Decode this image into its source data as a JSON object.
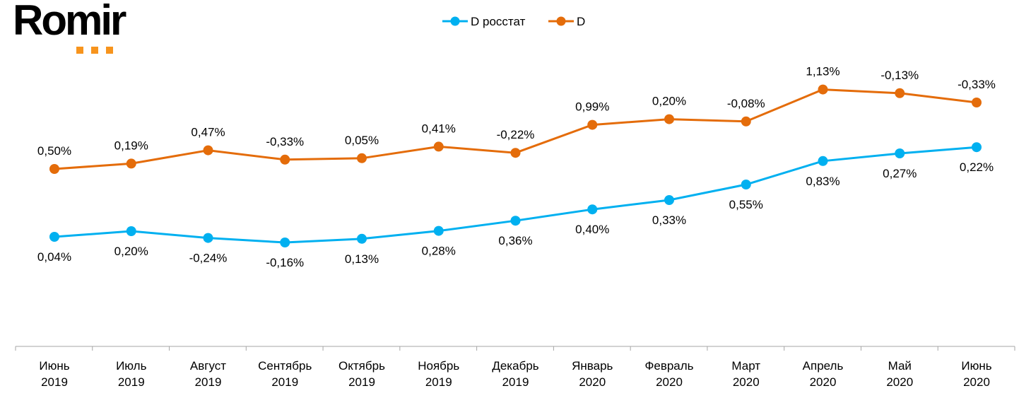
{
  "logo": {
    "text": "Romir",
    "accent": "#f7941d"
  },
  "chart_data": {
    "type": "line",
    "title": "",
    "xlabel": "",
    "ylabel": "",
    "grid": false,
    "legend_placement": "top-center",
    "categories": [
      [
        "Июнь",
        "2019"
      ],
      [
        "Июль",
        "2019"
      ],
      [
        "Август",
        "2019"
      ],
      [
        "Сентябрь",
        "2019"
      ],
      [
        "Октябрь",
        "2019"
      ],
      [
        "Ноябрь",
        "2019"
      ],
      [
        "Декабрь",
        "2019"
      ],
      [
        "Январь",
        "2020"
      ],
      [
        "Февраль",
        "2020"
      ],
      [
        "Март",
        "2020"
      ],
      [
        "Апрель",
        "2020"
      ],
      [
        "Май",
        "2020"
      ],
      [
        "Июнь",
        "2020"
      ]
    ],
    "series": [
      {
        "name": "D росстат",
        "color": "#00b0f0",
        "label_position": "below",
        "values": [
          0.04,
          0.2,
          -0.24,
          -0.16,
          0.13,
          0.28,
          0.36,
          0.4,
          0.33,
          0.55,
          0.83,
          0.27,
          0.22
        ],
        "labels": [
          "0,04%",
          "0,20%",
          "-0,24%",
          "-0,16%",
          "0,13%",
          "0,28%",
          "0,36%",
          "0,40%",
          "0,33%",
          "0,55%",
          "0,83%",
          "0,27%",
          "0,22%"
        ]
      },
      {
        "name": "D",
        "color": "#e46c0a",
        "label_position": "above",
        "values": [
          0.5,
          0.19,
          0.47,
          -0.33,
          0.05,
          0.41,
          -0.22,
          0.99,
          0.2,
          -0.08,
          1.13,
          -0.13,
          -0.33
        ],
        "labels": [
          "0,50%",
          "0,19%",
          "0,47%",
          "-0,33%",
          "0,05%",
          "0,41%",
          "-0,22%",
          "0,99%",
          "0,20%",
          "-0,08%",
          "1,13%",
          "-0,13%",
          "-0,33%"
        ]
      }
    ],
    "plotted_as": "cumulative"
  }
}
